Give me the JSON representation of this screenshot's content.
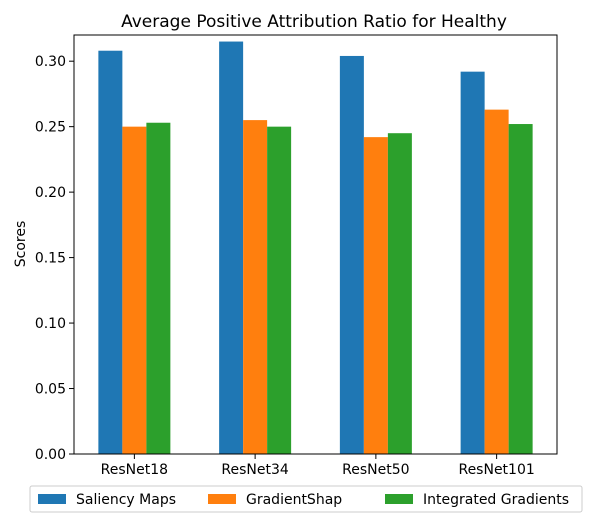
{
  "chart_data": {
    "type": "bar",
    "title": "Average Positive Attribution Ratio for Healthy",
    "xlabel": "",
    "ylabel": "Scores",
    "ylim": [
      0,
      0.32
    ],
    "yticks": [
      "0.00",
      "0.05",
      "0.10",
      "0.15",
      "0.20",
      "0.25",
      "0.30"
    ],
    "categories": [
      "ResNet18",
      "ResNet34",
      "ResNet50",
      "ResNet101"
    ],
    "series": [
      {
        "name": "Saliency Maps",
        "color": "#1f77b4",
        "values": [
          0.308,
          0.315,
          0.304,
          0.292
        ]
      },
      {
        "name": "GradientShap",
        "color": "#ff7f0e",
        "values": [
          0.25,
          0.255,
          0.242,
          0.263
        ]
      },
      {
        "name": "Integrated Gradients",
        "color": "#2ca02c",
        "values": [
          0.253,
          0.25,
          0.245,
          0.252
        ]
      }
    ],
    "grid": false,
    "legend_position": "bottom"
  }
}
